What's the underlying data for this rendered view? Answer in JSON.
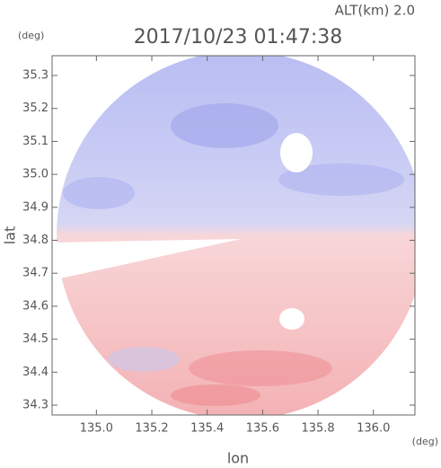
{
  "chart_data": {
    "type": "image",
    "title": "2017/10/23 01:47:38",
    "subtitle": "ALT(km) 2.0",
    "y_unit": "(deg)",
    "x_unit": "(deg)",
    "xlabel": "lon",
    "ylabel": "lat",
    "xlim": [
      134.84,
      136.15
    ],
    "ylim": [
      34.27,
      35.36
    ],
    "xticks": [
      {
        "value": 135,
        "label": "135.0"
      },
      135.2,
      135.4,
      135.6,
      135.8,
      {
        "value": 136,
        "label": "136.0"
      }
    ],
    "yticks": [
      34.3,
      34.4,
      34.5,
      34.6,
      34.7,
      34.8,
      34.9,
      {
        "value": 35,
        "label": "35.0"
      },
      35.1,
      35.2,
      35.3
    ]
  }
}
